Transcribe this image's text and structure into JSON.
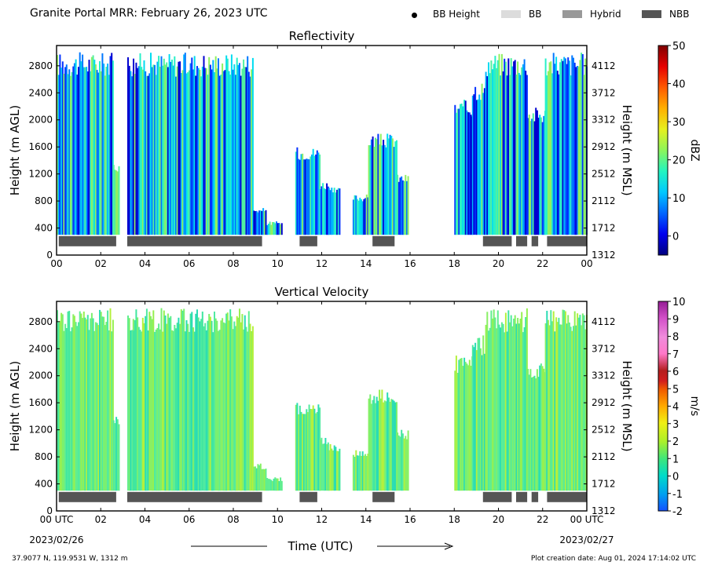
{
  "header": {
    "title": "Granite Portal MRR:  February 26, 2023 UTC",
    "legend": [
      {
        "label": "BB Height",
        "color": "#000000",
        "shape": "dot"
      },
      {
        "label": "BB",
        "color": "#dcdcdc",
        "shape": "rect"
      },
      {
        "label": "Hybrid",
        "color": "#999999",
        "shape": "rect"
      },
      {
        "label": "NBB",
        "color": "#555555",
        "shape": "rect"
      }
    ]
  },
  "footer": {
    "location": "37.9077 N, 119.9531 W, 1312 m",
    "creation": "Plot creation date: Aug 01, 2024 17:14:02 UTC",
    "start_date": "2023/02/26",
    "end_date": "2023/02/27"
  },
  "chart_data": [
    {
      "type": "heatmap",
      "title": "Reflectivity",
      "xlabel": "",
      "ylabel": "Height (m AGL)",
      "ylabel_right": "Height (m MSL)",
      "x_ticks": [
        "00",
        "02",
        "04",
        "06",
        "08",
        "10",
        "12",
        "14",
        "16",
        "18",
        "20",
        "22",
        "00"
      ],
      "y_ticks": [
        0,
        400,
        800,
        1200,
        1600,
        2000,
        2400,
        2800
      ],
      "y_ticks_right": [
        1312,
        1712,
        2112,
        2512,
        2912,
        3312,
        3712,
        4112
      ],
      "xlim": [
        0,
        24
      ],
      "ylim": [
        0,
        3100
      ],
      "colorbar": {
        "label": "dBZ",
        "range": [
          -5,
          50
        ],
        "ticks": [
          0,
          10,
          20,
          30,
          40,
          50
        ]
      },
      "nbb_segments": [
        [
          0.1,
          2.7
        ],
        [
          3.2,
          9.3
        ],
        [
          11.0,
          11.8
        ],
        [
          14.3,
          15.3
        ],
        [
          19.3,
          20.6
        ],
        [
          20.8,
          21.3
        ],
        [
          21.5,
          21.8
        ],
        [
          22.2,
          24.0
        ]
      ]
    },
    {
      "type": "heatmap",
      "title": "Vertical Velocity",
      "xlabel": "Time (UTC)",
      "ylabel": "Height (m AGL)",
      "ylabel_right": "Height (m MSL)",
      "x_ticks": [
        "00 UTC",
        "02",
        "04",
        "06",
        "08",
        "10",
        "12",
        "14",
        "16",
        "18",
        "20",
        "22",
        "00 UTC"
      ],
      "y_ticks": [
        0,
        400,
        800,
        1200,
        1600,
        2000,
        2400,
        2800
      ],
      "y_ticks_right": [
        1312,
        1712,
        2112,
        2512,
        2912,
        3312,
        3712,
        4112
      ],
      "xlim": [
        0,
        24
      ],
      "ylim": [
        0,
        3100
      ],
      "colorbar": {
        "label": "m/s",
        "range": [
          -2,
          10
        ],
        "ticks": [
          -2,
          -1,
          0,
          1,
          2,
          3,
          4,
          5,
          6,
          7,
          8,
          9,
          10
        ]
      },
      "nbb_segments": [
        [
          0.1,
          2.7
        ],
        [
          3.2,
          9.3
        ],
        [
          11.0,
          11.8
        ],
        [
          14.3,
          15.3
        ],
        [
          19.3,
          20.6
        ],
        [
          20.8,
          21.3
        ],
        [
          21.5,
          21.8
        ],
        [
          22.2,
          24.0
        ]
      ]
    }
  ]
}
